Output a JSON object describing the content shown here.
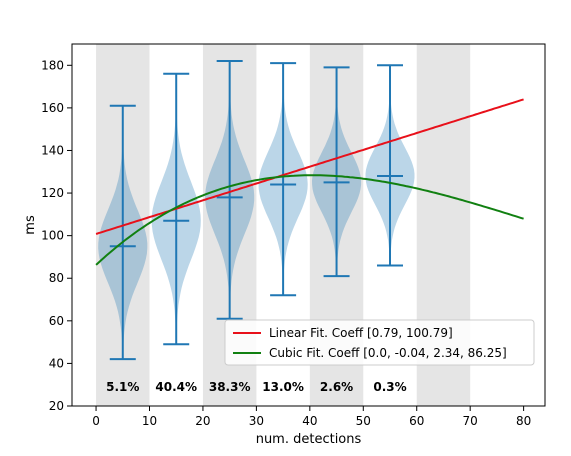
{
  "chart_data": {
    "type": "violin",
    "xlabel": "num. detections",
    "ylabel": "ms",
    "xlim": [
      -4.5,
      84
    ],
    "ylim": [
      20,
      190
    ],
    "x_ticks": [
      0,
      10,
      20,
      30,
      40,
      50,
      60,
      70,
      80
    ],
    "y_ticks": [
      20,
      40,
      60,
      80,
      100,
      120,
      140,
      160,
      180
    ],
    "shaded_bands": [
      [
        0,
        10
      ],
      [
        20,
        30
      ],
      [
        40,
        50
      ],
      [
        60,
        70
      ]
    ],
    "violins": [
      {
        "x": 5,
        "min": 42,
        "max": 161,
        "mean": 95,
        "share": "5.1%"
      },
      {
        "x": 15,
        "min": 49,
        "max": 176,
        "mean": 107,
        "share": "40.4%"
      },
      {
        "x": 25,
        "min": 61,
        "max": 182,
        "mean": 118,
        "share": "38.3%"
      },
      {
        "x": 35,
        "min": 72,
        "max": 181,
        "mean": 124,
        "share": "13.0%"
      },
      {
        "x": 45,
        "min": 81,
        "max": 179,
        "mean": 125,
        "share": "2.6%"
      },
      {
        "x": 55,
        "min": 86,
        "max": 180,
        "mean": 128,
        "share": "0.3%"
      }
    ],
    "series": [
      {
        "name": "Linear Fit. Coeff [0.79, 100.79]",
        "kind": "linear",
        "coeffs": [
          0.79,
          100.79
        ],
        "color": "#e8101a"
      },
      {
        "name": "Cubic Fit. Coeff [0.0, -0.04, 2.34, 86.25]",
        "kind": "cubic",
        "coeffs": [
          0.000158,
          -0.0385,
          2.34,
          86.25
        ],
        "color": "#118011"
      }
    ],
    "fit_x_range": [
      0,
      80
    ],
    "legend_position": "lower-right",
    "violin_color": "#1f77b4",
    "band_color": "#e5e5e5"
  }
}
